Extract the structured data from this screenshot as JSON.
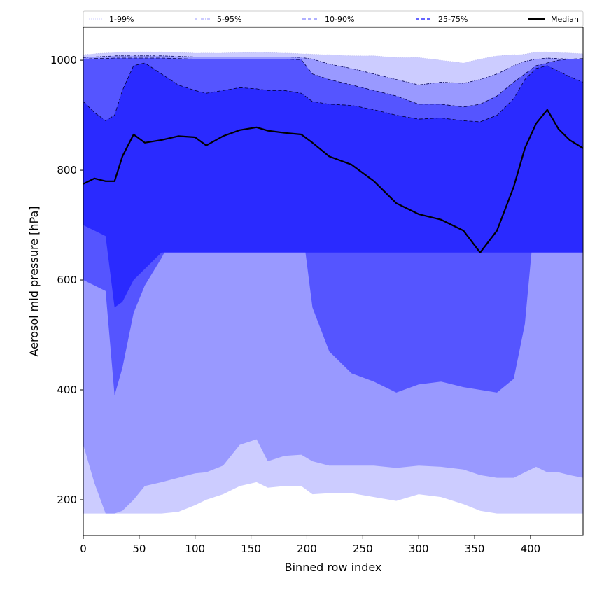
{
  "chart_data": {
    "type": "area",
    "xlabel": "Binned row index",
    "ylabel": "Aerosol mid pressure [hPa]",
    "xlim": [
      0,
      447
    ],
    "ylim": [
      135,
      1060
    ],
    "x_ticks": [
      0,
      50,
      100,
      150,
      200,
      250,
      300,
      350,
      400
    ],
    "x_tick_labels": [
      "0",
      "50",
      "100",
      "150",
      "200",
      "250",
      "300",
      "350",
      "400"
    ],
    "y_ticks": [
      200,
      400,
      600,
      800,
      1000
    ],
    "y_tick_labels": [
      "200",
      "400",
      "600",
      "800",
      "1000"
    ],
    "grid": false,
    "legend_position": "top, spanning full width",
    "legend": [
      {
        "label": "1-99%",
        "style": "dotted",
        "color": "#ccccff"
      },
      {
        "label": "5-95%",
        "style": "dashdot",
        "color": "#9999ff"
      },
      {
        "label": "10-90%",
        "style": "dashed",
        "color": "#8080ff"
      },
      {
        "label": "25-75%",
        "style": "dashed",
        "color": "#3333ff"
      },
      {
        "label": "Median",
        "style": "solid",
        "color": "#000000"
      }
    ],
    "colors": {
      "band_1_99": "#ccccff",
      "band_5_95": "#9999ff",
      "band_10_90": "#5555ff",
      "band_25_75": "#2a2aff",
      "median": "#000000"
    },
    "x": [
      0,
      10,
      20,
      28,
      35,
      45,
      55,
      70,
      85,
      100,
      110,
      125,
      140,
      155,
      165,
      180,
      195,
      205,
      220,
      240,
      260,
      280,
      300,
      320,
      340,
      355,
      370,
      385,
      395,
      405,
      415,
      425,
      435,
      447
    ],
    "series": [
      {
        "name": "1-99%",
        "lower": [
          175,
          175,
          175,
          175,
          175,
          175,
          175,
          175,
          178,
          190,
          200,
          210,
          225,
          232,
          222,
          225,
          225,
          210,
          212,
          212,
          205,
          198,
          210,
          205,
          192,
          180,
          175,
          175,
          175,
          175,
          175,
          175,
          175,
          175
        ],
        "upper": [
          1010,
          1012,
          1013,
          1014,
          1015,
          1015,
          1015,
          1015,
          1014,
          1013,
          1013,
          1013,
          1014,
          1014,
          1014,
          1013,
          1012,
          1011,
          1010,
          1008,
          1008,
          1005,
          1005,
          1000,
          995,
          1002,
          1008,
          1010,
          1011,
          1015,
          1015,
          1014,
          1013,
          1012
        ]
      },
      {
        "name": "5-95%",
        "lower": [
          300,
          230,
          175,
          175,
          180,
          200,
          225,
          232,
          240,
          248,
          250,
          262,
          300,
          310,
          270,
          280,
          282,
          270,
          262,
          262,
          262,
          258,
          262,
          260,
          255,
          245,
          240,
          240,
          250,
          260,
          250,
          250,
          245,
          240
        ],
        "upper": [
          1005,
          1006,
          1007,
          1008,
          1008,
          1008,
          1008,
          1008,
          1007,
          1006,
          1006,
          1006,
          1006,
          1006,
          1006,
          1006,
          1005,
          1002,
          993,
          985,
          975,
          965,
          955,
          960,
          958,
          965,
          975,
          990,
          998,
          1002,
          1004,
          1003,
          1002,
          1002
        ]
      },
      {
        "name": "10-90%",
        "lower": [
          600,
          590,
          580,
          390,
          440,
          540,
          590,
          640,
          700,
          750,
          720,
          720,
          740,
          745,
          735,
          735,
          710,
          550,
          470,
          430,
          415,
          395,
          410,
          415,
          405,
          400,
          395,
          420,
          520,
          740,
          740,
          720,
          690,
          670
        ],
        "upper": [
          1002,
          1003,
          1003,
          1004,
          1004,
          1004,
          1004,
          1004,
          1003,
          1002,
          1002,
          1002,
          1002,
          1002,
          1002,
          1002,
          1001,
          975,
          965,
          955,
          945,
          935,
          920,
          920,
          915,
          920,
          935,
          960,
          975,
          990,
          995,
          1000,
          1002,
          1003
        ]
      },
      {
        "name": "25-75%",
        "lower": [
          700,
          690,
          680,
          550,
          560,
          600,
          620,
          650,
          650,
          650,
          650,
          650,
          650,
          650,
          650,
          650,
          650,
          650,
          650,
          650,
          650,
          650,
          650,
          650,
          650,
          650,
          650,
          650,
          650,
          650,
          650,
          650,
          650,
          650
        ],
        "upper": [
          925,
          905,
          890,
          900,
          945,
          990,
          995,
          975,
          955,
          945,
          940,
          945,
          950,
          948,
          945,
          945,
          940,
          925,
          920,
          918,
          910,
          900,
          893,
          895,
          890,
          888,
          900,
          930,
          965,
          985,
          990,
          980,
          970,
          960
        ]
      },
      {
        "name": "Median",
        "values": [
          775,
          785,
          780,
          780,
          825,
          865,
          850,
          855,
          862,
          860,
          845,
          862,
          873,
          878,
          872,
          868,
          865,
          850,
          825,
          810,
          780,
          740,
          720,
          710,
          690,
          650,
          690,
          770,
          840,
          885,
          910,
          875,
          855,
          840
        ]
      }
    ]
  }
}
